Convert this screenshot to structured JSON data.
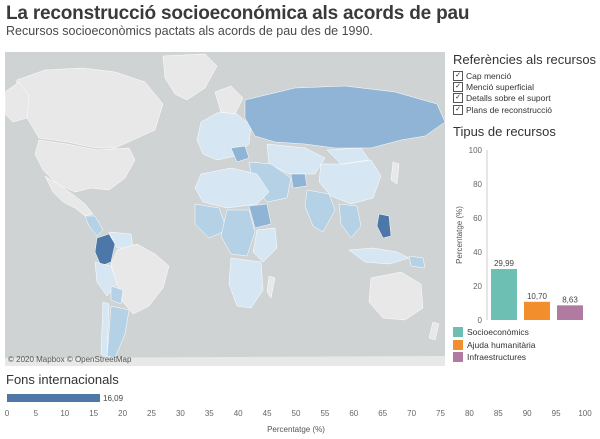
{
  "header": {
    "title": "La reconstrucció socioeconómica als acords de pau",
    "subtitle": "Recursos socioeconòmics pactats als acords de pau des de 1990."
  },
  "map": {
    "attribution": "© 2020 Mapbox © OpenStreetMap",
    "colors": {
      "ocean": "#cfd3d4",
      "low": "#d6e6f2",
      "mid": "#b4d1e6",
      "high": "#8fb4d6",
      "top": "#4d77a8"
    }
  },
  "references": {
    "title": "Referències als recursos",
    "items": [
      {
        "label": "Cap menció",
        "checked": true
      },
      {
        "label": "Menció superficial",
        "checked": true
      },
      {
        "label": "Detalls sobre el suport",
        "checked": true
      },
      {
        "label": "Plans de reconstrucció",
        "checked": true
      }
    ]
  },
  "tipus": {
    "title": "Tipus de recursos",
    "legend": [
      {
        "label": "Socioeconòmics",
        "color": "#6dbfb4"
      },
      {
        "label": "Ajuda humanitària",
        "color": "#f28e2b"
      },
      {
        "label": "Infraestructures",
        "color": "#b07aa1"
      }
    ]
  },
  "fons": {
    "title": "Fons internacionals"
  },
  "chart_data": [
    {
      "type": "bar",
      "title": "Tipus de recursos",
      "categories": [
        "Socioeconòmics",
        "Ajuda humanitària",
        "Infraestructures"
      ],
      "values": [
        29.99,
        10.7,
        8.63
      ],
      "data_labels": [
        "29,99",
        "10,70",
        "8,63"
      ],
      "colors": [
        "#6dbfb4",
        "#f28e2b",
        "#b07aa1"
      ],
      "ylabel": "Percentatge (%)",
      "ylim": [
        0,
        100
      ],
      "yticks": [
        "0",
        "20",
        "40",
        "60",
        "80",
        "100"
      ],
      "grid": false,
      "legend": "bottom"
    },
    {
      "type": "bar",
      "orientation": "horizontal",
      "title": "Fons internacionals",
      "categories": [
        "Fons internacionals"
      ],
      "values": [
        16.09
      ],
      "data_labels": [
        "16,09"
      ],
      "color": "#4e79a7",
      "xlabel": "Percentatge (%)",
      "xlim": [
        0,
        100
      ],
      "xticks": [
        "0",
        "5",
        "10",
        "15",
        "20",
        "25",
        "30",
        "35",
        "40",
        "45",
        "50",
        "55",
        "60",
        "65",
        "70",
        "75",
        "80",
        "85",
        "90",
        "95",
        "100"
      ],
      "grid": false
    }
  ]
}
